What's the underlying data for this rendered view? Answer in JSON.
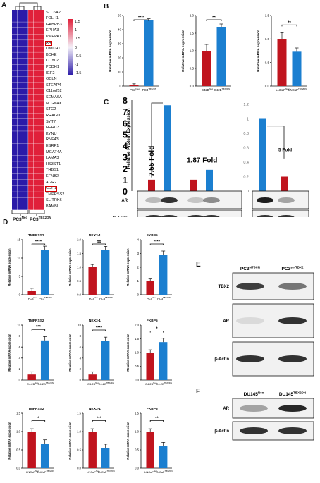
{
  "panelA": {
    "label": "A",
    "genes": [
      "SLC6A2",
      "FOLH1",
      "GABRB3",
      "EPHA3",
      "PMEPA1",
      "AR",
      "LIMCH1",
      "BCHE",
      "CDYL2",
      "PCDH1",
      "IGF2",
      "OCLN",
      "STEAP4",
      "C11orf52",
      "SEMA6A",
      "NLGN4X",
      "STC2",
      "RRAGD",
      "SYT7",
      "HERC3",
      "KYNU",
      "RNF43",
      "ESRP1",
      "MGAT4A",
      "LAMA3",
      "HS3ST1",
      "THBS1",
      "EFNB2",
      "AGR2",
      "CDH1",
      "TMPRSS2",
      "SLITRK6",
      "BAMBI"
    ],
    "highlighted": [
      "AR",
      "CDH1"
    ],
    "colorbar_ticks": [
      "1.5",
      "1",
      "0.5",
      "0",
      "-0.5",
      "-1",
      "-1.5"
    ],
    "group_left": "PC3",
    "group_left_sup": "Neo",
    "group_right": "PC3",
    "group_right_sup": "TBX2DN",
    "colors": {
      "high": "#e0203a",
      "low": "#2b1aa8"
    }
  },
  "panelB": {
    "label": "B",
    "ylabel": "Relative mRNA expression",
    "charts": [
      {
        "name": "pc3",
        "sig": "****",
        "ticks": [
          "0",
          "10",
          "20",
          "30",
          "40",
          "50"
        ],
        "xlabels": [
          "PC3",
          "PC3"
        ],
        "xsups": [
          "Neo",
          "TBX2DN"
        ]
      },
      {
        "name": "c42b",
        "sig": "**",
        "ticks": [
          "0.0",
          "0.5",
          "1.0",
          "1.5",
          "2.0"
        ],
        "xlabels": [
          "C42B",
          "C42B"
        ],
        "xsups": [
          "Neo",
          "TBX2DN"
        ]
      },
      {
        "name": "lncap",
        "sig": "**",
        "ticks": [
          "0.0",
          "0.5",
          "1.0",
          "1.5"
        ],
        "xlabels": [
          "LNCaP",
          "LNCaP"
        ],
        "xsups": [
          "Neo",
          "TBX2DN"
        ]
      }
    ]
  },
  "panelC": {
    "label": "C",
    "ylabel": "Relative Protein Expression",
    "ticks_left": [
      "0",
      "1",
      "2",
      "3",
      "4",
      "5",
      "6",
      "7",
      "8"
    ],
    "ticks_right": [
      "0",
      "0.2",
      "0.4",
      "0.6",
      "0.8",
      "1",
      "1.2"
    ],
    "fold1": "7.55 Fold",
    "fold2": "1.87 Fold",
    "fold3": "5 Fold",
    "blot_rows": [
      "AR",
      "β-Actin"
    ],
    "lanes": [
      {
        "t": "PC3",
        "s": "Neo"
      },
      {
        "t": "PC3",
        "s": "TBX2DN"
      },
      {
        "t": "C4-2B",
        "s": "Neo"
      },
      {
        "t": "C4-2B",
        "s": "TBX2DN"
      },
      {
        "t": "LNCaP",
        "s": "Neo"
      },
      {
        "t": "LNCaP",
        "s": "TBX2DN"
      }
    ]
  },
  "panelD": {
    "label": "D",
    "ylabel": "Relative mRNA expression",
    "col_titles": [
      "TMPRSS2",
      "NKX3-1",
      "FKBP5"
    ],
    "rows": [
      {
        "xl": [
          "PC3",
          "PC3"
        ],
        "xs": [
          "Neo",
          "TBX2DN"
        ],
        "sigs": [
          "****",
          "##",
          "****"
        ],
        "ticks": [
          [
            "0",
            "5",
            "10",
            "15"
          ],
          [
            "0.0",
            "0.5",
            "1.0",
            "1.5",
            "2.0"
          ],
          [
            "0",
            "1",
            "2",
            "3",
            "4"
          ]
        ]
      },
      {
        "xl": [
          "C4-2B",
          "C4-2B"
        ],
        "xs": [
          "Neo",
          "TBX2DN"
        ],
        "sigs": [
          "***",
          "****",
          "*"
        ],
        "ticks": [
          [
            "0",
            "2",
            "4",
            "6",
            "8",
            "10"
          ],
          [
            "0",
            "2",
            "4",
            "6",
            "8",
            "10"
          ],
          [
            "0.0",
            "0.5",
            "1.0",
            "1.5",
            "2.0"
          ]
        ]
      },
      {
        "xl": [
          "LNCaP",
          "LNCaP"
        ],
        "xs": [
          "Neo",
          "TBX2DN"
        ],
        "sigs": [
          "*",
          "***",
          "**"
        ],
        "ticks": [
          [
            "0.0",
            "0.5",
            "1.0",
            "1.5"
          ],
          [
            "0.0",
            "0.5",
            "1.0",
            "1.5"
          ],
          [
            "0.0",
            "0.5",
            "1.0",
            "1.5"
          ]
        ]
      }
    ]
  },
  "panelE": {
    "label": "E",
    "lanes": [
      {
        "t": "PC3",
        "s": "NTSCR"
      },
      {
        "t": "PC3",
        "s": "sh-TBX2"
      }
    ],
    "rows": [
      "TBX2",
      "AR",
      "β-Actin"
    ]
  },
  "panelF": {
    "label": "F",
    "lanes": [
      {
        "t": "DU145",
        "s": "Neo"
      },
      {
        "t": "DU145",
        "s": "TBX2DN"
      }
    ],
    "rows": [
      "AR",
      "β-Actin"
    ]
  },
  "chart_data": [
    {
      "type": "heatmap",
      "rows": [
        "SLC6A2",
        "FOLH1",
        "GABRB3",
        "EPHA3",
        "PMEPA1",
        "AR",
        "LIMCH1",
        "BCHE",
        "CDYL2",
        "PCDH1",
        "IGF2",
        "OCLN",
        "STEAP4",
        "C11orf52",
        "SEMA6A",
        "NLGN4X",
        "STC2",
        "RRAGD",
        "SYT7",
        "HERC3",
        "KYNU",
        "RNF43",
        "ESRP1",
        "MGAT4A",
        "LAMA3",
        "HS3ST1",
        "THBS1",
        "EFNB2",
        "AGR2",
        "CDH1",
        "TMPRSS2",
        "SLITRK6",
        "BAMBI"
      ],
      "columns": [
        "PC3 Neo 1",
        "PC3 Neo 2",
        "PC3 Neo 3",
        "PC3 TBX2DN 1",
        "PC3 TBX2DN 2",
        "PC3 TBX2DN 3"
      ],
      "values_pattern": "Neo columns low (~-1.1), TBX2DN columns high (~1.1)",
      "zlim": [
        -1.5,
        1.5
      ]
    },
    {
      "type": "bar",
      "categories": [
        "PC3 Neo",
        "PC3 TBX2DN"
      ],
      "values": [
        1.0,
        46.5
      ],
      "ylim": [
        0,
        50
      ]
    },
    {
      "type": "bar",
      "categories": [
        "C42B Neo",
        "C42B TBX2DN"
      ],
      "values": [
        1.0,
        1.68
      ],
      "ylim": [
        0,
        2.0
      ]
    },
    {
      "type": "bar",
      "categories": [
        "LNCaP Neo",
        "LNCaP TBX2DN"
      ],
      "values": [
        1.0,
        0.73
      ],
      "ylim": [
        0,
        1.5
      ]
    },
    {
      "type": "bar",
      "categories": [
        "PC3 Neo",
        "PC3 TBX2DN",
        "C4-2B Neo",
        "C4-2B TBX2DN"
      ],
      "values": [
        1.0,
        7.55,
        1.0,
        1.87
      ],
      "ylim": [
        0,
        8
      ]
    },
    {
      "type": "bar",
      "categories": [
        "LNCaP Neo",
        "LNCaP TBX2DN"
      ],
      "values": [
        1.0,
        0.2
      ],
      "ylim": [
        0,
        1.2
      ]
    },
    {
      "type": "bar",
      "categories": [
        "PC3 Neo",
        "PC3 TBX2DN"
      ],
      "values": [
        1.0,
        12.2
      ],
      "ylim": [
        0,
        15
      ]
    },
    {
      "type": "bar",
      "categories": [
        "PC3 Neo",
        "PC3 TBX2DN"
      ],
      "values": [
        1.0,
        1.62
      ],
      "ylim": [
        0,
        2.0
      ]
    },
    {
      "type": "bar",
      "categories": [
        "PC3 Neo",
        "PC3 TBX2DN"
      ],
      "values": [
        1.0,
        2.9
      ],
      "ylim": [
        0,
        4
      ]
    },
    {
      "type": "bar",
      "categories": [
        "C4-2B Neo",
        "C4-2B TBX2DN"
      ],
      "values": [
        1.0,
        7.2
      ],
      "ylim": [
        0,
        10
      ]
    },
    {
      "type": "bar",
      "categories": [
        "C4-2B Neo",
        "C4-2B TBX2DN"
      ],
      "values": [
        1.0,
        7.1
      ],
      "ylim": [
        0,
        10
      ]
    },
    {
      "type": "bar",
      "categories": [
        "C4-2B Neo",
        "C4-2B TBX2DN"
      ],
      "values": [
        1.0,
        1.38
      ],
      "ylim": [
        0,
        2.0
      ]
    },
    {
      "type": "bar",
      "categories": [
        "LNCaP Neo",
        "LNCaP TBX2DN"
      ],
      "values": [
        1.0,
        0.67
      ],
      "ylim": [
        0,
        1.5
      ]
    },
    {
      "type": "bar",
      "categories": [
        "LNCaP Neo",
        "LNCaP TBX2DN"
      ],
      "values": [
        1.0,
        0.55
      ],
      "ylim": [
        0,
        1.5
      ]
    },
    {
      "type": "bar",
      "categories": [
        "LNCaP Neo",
        "LNCaP TBX2DN"
      ],
      "values": [
        1.0,
        0.6
      ],
      "ylim": [
        0,
        1.5
      ]
    }
  ]
}
